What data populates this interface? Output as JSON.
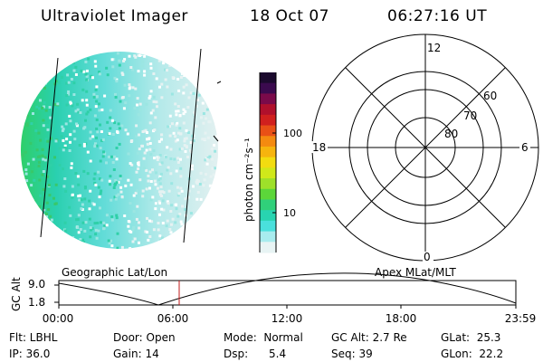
{
  "header": {
    "title": "Ultraviolet Imager",
    "date": "18 Oct 07",
    "time": "06:27:16 UT"
  },
  "colorbar": {
    "unit_label": "photon cm⁻²s⁻¹",
    "ticks": [
      "100",
      "10"
    ],
    "colors": [
      "#1b0a2e",
      "#3a0a4e",
      "#7a0a4a",
      "#b0102c",
      "#d0201e",
      "#e85016",
      "#f48a10",
      "#f6b40e",
      "#f2dc10",
      "#d0e81a",
      "#9ee02a",
      "#5cd63a",
      "#30d07a",
      "#28d4b0",
      "#4ae0dc",
      "#a8ecee",
      "#e8f4f4"
    ]
  },
  "polar_grid": {
    "labels": [
      "12",
      "18",
      "6",
      "0",
      "60",
      "70",
      "80"
    ]
  },
  "timeline": {
    "axis_title": "GC Alt",
    "y_ticks": [
      "9.0",
      "1.8"
    ],
    "left_caption": "Geographic Lat/Lon",
    "right_caption": "Apex MLat/MLT",
    "x_ticks": [
      "00:00",
      "06:00",
      "12:00",
      "18:00",
      "23:59"
    ],
    "current_time": "06:27:16"
  },
  "status": {
    "flt": "Flt: LBHL",
    "ip": "IP: 36.0",
    "door": "Door: Open",
    "gain": "Gain: 14",
    "mode": "Mode:  Normal",
    "dsp": "Dsp:      5.4",
    "gc_alt": "GC Alt: 2.7 Re",
    "seq": "Seq: 39",
    "glat": "GLat:  25.3",
    "glon": "GLon:  22.2"
  }
}
